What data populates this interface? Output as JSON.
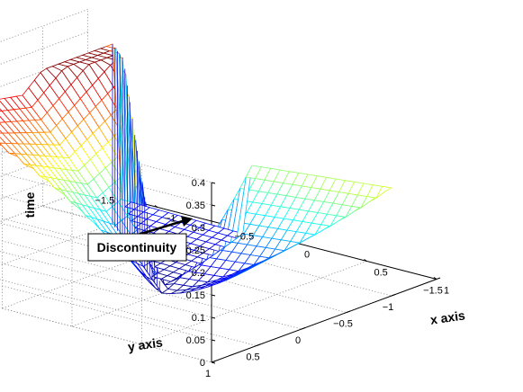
{
  "chart_data": {
    "type": "surface-mesh-3d",
    "title": "",
    "xlabel": "x axis",
    "ylabel": "y axis",
    "zlabel": "time",
    "x_ticks": [
      "−1.5",
      "−1",
      "−0.5",
      "0",
      "0.5",
      "1"
    ],
    "y_ticks": [
      "−1.5",
      "−1",
      "−0.5",
      "0",
      "0.5",
      "1"
    ],
    "z_ticks": [
      "0",
      "0.05",
      "0.1",
      "0.15",
      "0.2",
      "0.25",
      "0.3",
      "0.35",
      "0.4"
    ],
    "xlim": [
      -1.5,
      1
    ],
    "ylim": [
      -1.5,
      1
    ],
    "zlim": [
      0,
      0.4
    ],
    "grid": true,
    "colormap": "jet",
    "surface_samples": [
      {
        "x": -1,
        "y": 1,
        "time": 0.4
      },
      {
        "x": 0,
        "y": 0,
        "time": 0.3
      },
      {
        "x": 0,
        "y": 0,
        "time": 0
      },
      {
        "x": -1,
        "y": -1,
        "time": 0
      },
      {
        "x": 1,
        "y": 1,
        "time": 0.38
      },
      {
        "x": 1,
        "y": -1,
        "time": 0.25
      }
    ],
    "annotation": {
      "text": "Discontinuity"
    }
  }
}
